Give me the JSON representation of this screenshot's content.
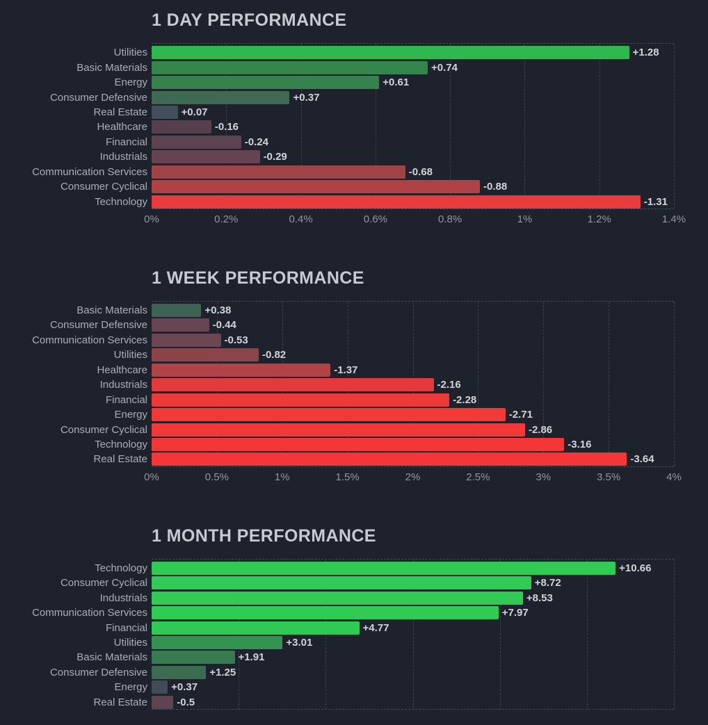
{
  "theme": {
    "background": "#1e222d",
    "title_color": "#c7cad2",
    "label_color": "#a9aeb9",
    "value_color": "#d2d4da",
    "tick_color": "#9196a4",
    "positive_strong_color": "#2fcb54",
    "negative_strong_color": "#f53636",
    "neutral_color": "#42505c"
  },
  "chart_data": [
    {
      "type": "bar",
      "orientation": "horizontal",
      "title": "1 DAY PERFORMANCE",
      "note": "bar length encodes absolute value of percent change",
      "xlim": [
        0,
        1.4
      ],
      "ticks": [
        0,
        0.2,
        0.4,
        0.6,
        0.8,
        1,
        1.2,
        1.4
      ],
      "tick_labels": [
        "0%",
        "0.2%",
        "0.4%",
        "0.6%",
        "0.8%",
        "1%",
        "1.2%",
        "1.4%"
      ],
      "categories": [
        "Utilities",
        "Basic Materials",
        "Energy",
        "Consumer Defensive",
        "Real Estate",
        "Healthcare",
        "Financial",
        "Industrials",
        "Communication Services",
        "Consumer Cyclical",
        "Technology"
      ],
      "values": [
        1.28,
        0.74,
        0.61,
        0.37,
        0.07,
        -0.16,
        -0.24,
        -0.29,
        -0.68,
        -0.88,
        -1.31
      ],
      "value_labels": [
        "+1.28",
        "+0.74",
        "+0.61",
        "+0.37",
        "+0.07",
        "-0.16",
        "-0.24",
        "-0.29",
        "-0.68",
        "-0.88",
        "-1.31"
      ],
      "bar_colors": [
        "#2eb850",
        "#35854e",
        "#35824d",
        "#3e6a51",
        "#42505c",
        "#56404d",
        "#5d4250",
        "#654350",
        "#9f4347",
        "#ae4244",
        "#e93a3c"
      ]
    },
    {
      "type": "bar",
      "orientation": "horizontal",
      "title": "1 WEEK PERFORMANCE",
      "note": "bar length encodes absolute value of percent change",
      "xlim": [
        0,
        4
      ],
      "ticks": [
        0,
        0.5,
        1,
        1.5,
        2,
        2.5,
        3,
        3.5,
        4
      ],
      "tick_labels": [
        "0%",
        "0.5%",
        "1%",
        "1.5%",
        "2%",
        "2.5%",
        "3%",
        "3.5%",
        "4%"
      ],
      "categories": [
        "Basic Materials",
        "Consumer Defensive",
        "Communication Services",
        "Utilities",
        "Healthcare",
        "Industrials",
        "Financial",
        "Energy",
        "Consumer Cyclical",
        "Technology",
        "Real Estate"
      ],
      "values": [
        0.38,
        -0.44,
        -0.53,
        -0.82,
        -1.37,
        -2.16,
        -2.28,
        -2.71,
        -2.86,
        -3.16,
        -3.64
      ],
      "value_labels": [
        "+0.38",
        "-0.44",
        "-0.53",
        "-0.82",
        "-1.37",
        "-2.16",
        "-2.28",
        "-2.71",
        "-2.86",
        "-3.16",
        "-3.64"
      ],
      "bar_colors": [
        "#3d6152",
        "#664453",
        "#6d4654",
        "#8c444b",
        "#b14344",
        "#e33b3d",
        "#ec3939",
        "#f43737",
        "#f43737",
        "#f53636",
        "#f53636"
      ]
    },
    {
      "type": "bar",
      "orientation": "horizontal",
      "title": "1 MONTH PERFORMANCE",
      "note": "axis labels cut off at bottom of screenshot; gridlines every 2%",
      "xlim": [
        0,
        12
      ],
      "ticks": [
        2,
        4,
        6,
        8,
        10,
        12
      ],
      "tick_labels": [],
      "categories": [
        "Technology",
        "Consumer Cyclical",
        "Industrials",
        "Communication Services",
        "Financial",
        "Utilities",
        "Basic Materials",
        "Consumer Defensive",
        "Energy",
        "Real Estate"
      ],
      "values": [
        10.66,
        8.72,
        8.53,
        7.97,
        4.77,
        3.01,
        1.91,
        1.25,
        0.37,
        -0.5
      ],
      "value_labels": [
        "+10.66",
        "+8.72",
        "+8.53",
        "+7.97",
        "+4.77",
        "+3.01",
        "+1.91",
        "+1.25",
        "+0.37",
        "-0.5"
      ],
      "bar_colors": [
        "#2fcb54",
        "#2fcb54",
        "#2fcb54",
        "#2fcb54",
        "#2fca53",
        "#33924f",
        "#387b50",
        "#3d6b51",
        "#424c59",
        "#5e4351"
      ]
    }
  ]
}
